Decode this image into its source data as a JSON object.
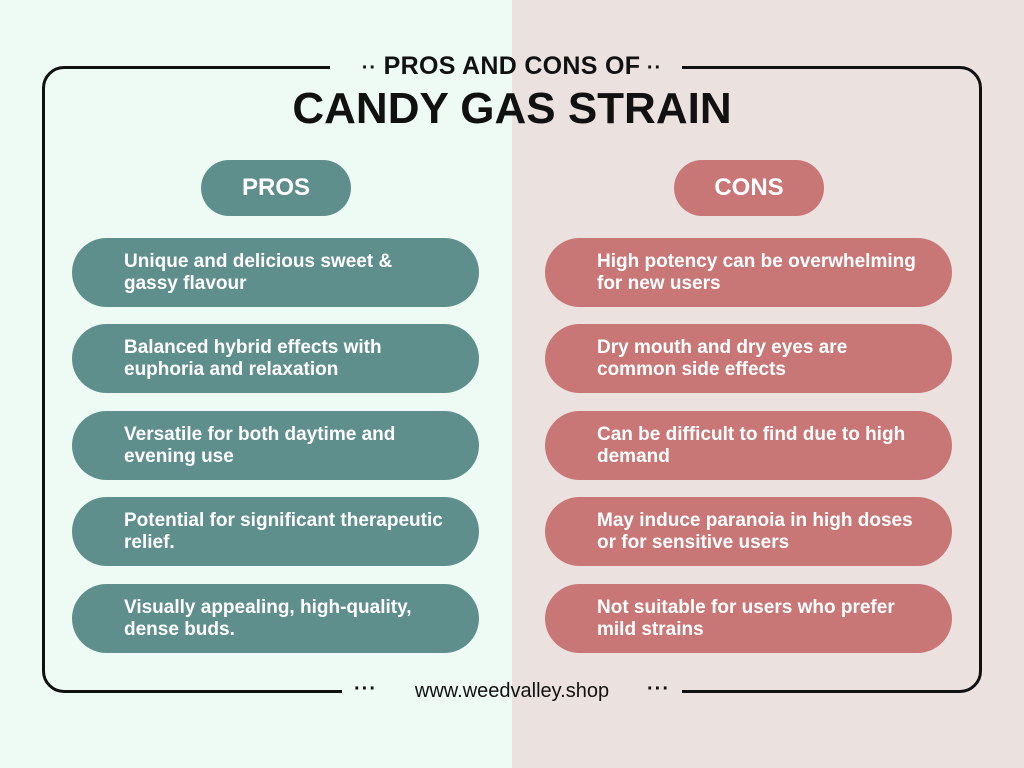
{
  "header": {
    "subtitle": "PROS AND CONS OF",
    "title": "CANDY GAS STRAIN"
  },
  "pros": {
    "label": "PROS",
    "color": "#5f8f8d",
    "items": [
      "Unique and delicious sweet & gassy flavour",
      "Balanced hybrid effects with euphoria and relaxation",
      "Versatile for both daytime and evening use",
      "Potential for significant therapeutic relief.",
      "Visually appealing, high-quality, dense buds."
    ]
  },
  "cons": {
    "label": "CONS",
    "color": "#c97676",
    "items": [
      "High potency can be overwhelming for new users",
      "Dry mouth and dry eyes are common side effects",
      "Can be difficult to find due to high demand",
      "May induce paranoia in high doses or for sensitive users",
      "Not suitable for users who prefer mild strains"
    ]
  },
  "footer": {
    "url": "www.weedvalley.shop"
  }
}
